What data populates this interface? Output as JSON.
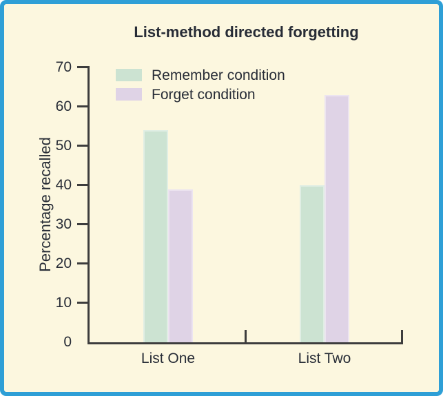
{
  "figure": {
    "background_color": "#FCF7DF",
    "border_color": "#2E9FD6"
  },
  "chart_data": {
    "type": "bar",
    "title": "List-method directed forgetting",
    "xlabel": "",
    "ylabel": "Percentage recalled",
    "categories": [
      "List One",
      "List Two"
    ],
    "series": [
      {
        "name": "Remember condition",
        "color": "#CCE3D2",
        "values": [
          54,
          40
        ]
      },
      {
        "name": "Forget condition",
        "color": "#DFD3E6",
        "values": [
          39,
          63
        ]
      }
    ],
    "ylim": [
      0,
      70
    ],
    "yticks": [
      0,
      10,
      20,
      30,
      40,
      50,
      60,
      70
    ],
    "grid": false,
    "legend_position": "top-left-inside",
    "axis_color": "#3D3D3D",
    "text_color": "#272C36"
  }
}
